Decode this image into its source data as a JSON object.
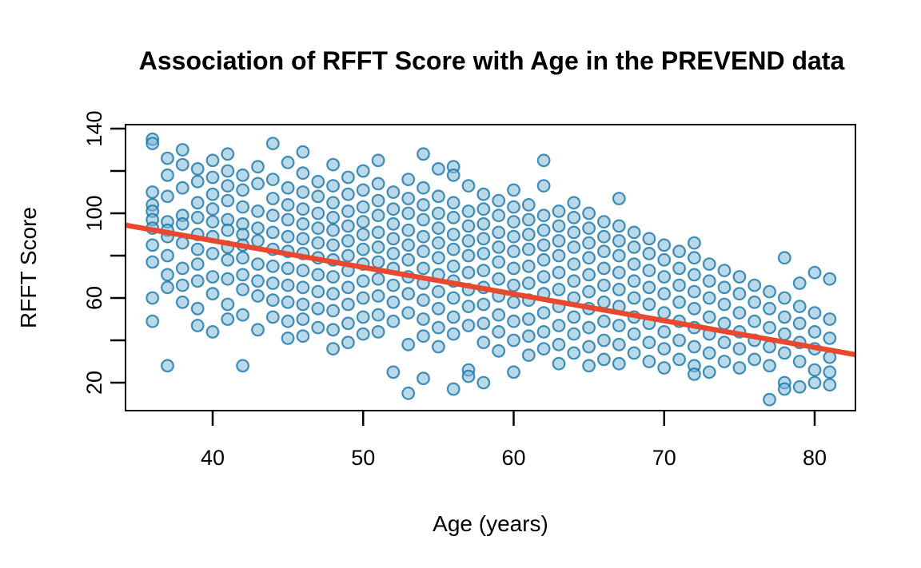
{
  "chart_data": {
    "type": "scatter",
    "title": "Association of RFFT Score with Age in the PREVEND data",
    "xlabel": "Age (years)",
    "ylabel": "RFFT Score",
    "xlim": [
      34.21,
      82.71
    ],
    "ylim": [
      6.8,
      141.9
    ],
    "x_ticks": [
      40,
      50,
      60,
      70,
      80
    ],
    "y_ticks": [
      20,
      40,
      60,
      80,
      100,
      120,
      140
    ],
    "y_ticks_labeled": [
      20,
      60,
      100,
      140
    ],
    "grid": false,
    "legend": "none",
    "background_color": "#ffffff",
    "frame_color": "#000000",
    "regression": {
      "label": "least-squares line",
      "intercept": 137.55,
      "slope": -1.261,
      "color": "#e8492e",
      "width": 6.5
    },
    "point_style": {
      "fill": "#80b8d5",
      "fill_opacity": 0.55,
      "stroke": "#1774a6",
      "stroke_opacity": 0.8,
      "stroke_width": 2.2,
      "radius": 7.3
    },
    "points_by_age": {
      "36": [
        135,
        133,
        110,
        104,
        101,
        97,
        93,
        85,
        77,
        60,
        49
      ],
      "37": [
        126,
        118,
        108,
        96,
        92,
        89,
        80,
        71,
        65,
        28
      ],
      "38": [
        130,
        123,
        112,
        99,
        95,
        86,
        74,
        66,
        58
      ],
      "39": [
        121,
        115,
        105,
        98,
        90,
        83,
        76,
        68,
        55,
        47
      ],
      "40": [
        125,
        117,
        109,
        102,
        96,
        89,
        81,
        70,
        62,
        44
      ],
      "41": [
        128,
        120,
        113,
        106,
        97,
        92,
        84,
        78,
        69,
        57,
        50
      ],
      "42": [
        118,
        111,
        103,
        95,
        90,
        85,
        79,
        71,
        64,
        52,
        28
      ],
      "43": [
        122,
        114,
        101,
        93,
        87,
        76,
        68,
        61,
        45
      ],
      "44": [
        133,
        116,
        107,
        99,
        91,
        83,
        75,
        67,
        59,
        51
      ],
      "45": [
        124,
        112,
        104,
        97,
        89,
        82,
        74,
        66,
        58,
        49,
        41
      ],
      "46": [
        129,
        119,
        110,
        102,
        95,
        88,
        81,
        73,
        65,
        57,
        50,
        42
      ],
      "47": [
        115,
        108,
        100,
        93,
        86,
        79,
        71,
        63,
        55,
        46
      ],
      "48": [
        123,
        113,
        105,
        98,
        92,
        85,
        78,
        70,
        62,
        54,
        45,
        36
      ],
      "49": [
        117,
        109,
        101,
        94,
        87,
        80,
        73,
        65,
        57,
        48,
        39
      ],
      "50": [
        120,
        111,
        103,
        96,
        90,
        83,
        76,
        68,
        60,
        51,
        43
      ],
      "51": [
        125,
        114,
        106,
        99,
        91,
        84,
        77,
        69,
        61,
        52,
        44
      ],
      "52": [
        110,
        102,
        95,
        88,
        81,
        74,
        66,
        58,
        49,
        25
      ],
      "53": [
        116,
        107,
        100,
        92,
        85,
        78,
        70,
        62,
        53,
        38,
        15
      ],
      "54": [
        128,
        112,
        104,
        97,
        89,
        82,
        74,
        67,
        59,
        50,
        42,
        22
      ],
      "55": [
        121,
        108,
        100,
        93,
        86,
        79,
        71,
        63,
        55,
        46,
        37
      ],
      "56": [
        122,
        118,
        105,
        98,
        90,
        83,
        75,
        68,
        60,
        51,
        43,
        17
      ],
      "57": [
        113,
        101,
        94,
        87,
        80,
        72,
        64,
        56,
        47,
        26,
        23
      ],
      "58": [
        109,
        102,
        95,
        88,
        81,
        73,
        65,
        57,
        48,
        39,
        20
      ],
      "59": [
        106,
        99,
        91,
        84,
        77,
        69,
        61,
        52,
        44,
        35
      ],
      "60": [
        111,
        103,
        96,
        89,
        82,
        74,
        66,
        58,
        49,
        40,
        25
      ],
      "61": [
        104,
        97,
        90,
        83,
        75,
        67,
        59,
        50,
        42,
        33
      ],
      "62": [
        125,
        113,
        99,
        92,
        85,
        78,
        70,
        62,
        53,
        44,
        36
      ],
      "63": [
        101,
        94,
        87,
        80,
        72,
        64,
        56,
        47,
        38,
        29
      ],
      "64": [
        105,
        98,
        91,
        84,
        76,
        68,
        60,
        51,
        43,
        34
      ],
      "65": [
        100,
        93,
        86,
        79,
        71,
        63,
        55,
        46,
        37,
        28
      ],
      "66": [
        96,
        89,
        82,
        74,
        66,
        58,
        49,
        40,
        31
      ],
      "67": [
        107,
        94,
        87,
        80,
        72,
        64,
        56,
        47,
        38,
        29
      ],
      "68": [
        91,
        84,
        76,
        68,
        60,
        51,
        43,
        34
      ],
      "69": [
        88,
        81,
        73,
        65,
        57,
        48,
        39,
        30
      ],
      "70": [
        85,
        78,
        70,
        62,
        53,
        44,
        36,
        27
      ],
      "71": [
        82,
        74,
        66,
        58,
        49,
        40,
        31
      ],
      "72": [
        86,
        79,
        71,
        63,
        55,
        46,
        37,
        28,
        24
      ],
      "73": [
        76,
        68,
        60,
        51,
        43,
        34,
        25
      ],
      "74": [
        73,
        65,
        57,
        48,
        39,
        30
      ],
      "75": [
        70,
        62,
        53,
        44,
        36,
        27
      ],
      "76": [
        66,
        58,
        49,
        40,
        31
      ],
      "77": [
        63,
        55,
        46,
        37,
        28,
        12
      ],
      "78": [
        79,
        60,
        51,
        43,
        34,
        20,
        17
      ],
      "79": [
        67,
        56,
        48,
        39,
        30,
        18
      ],
      "80": [
        72,
        53,
        44,
        36,
        26,
        20
      ],
      "81": [
        69,
        50,
        41,
        32,
        25,
        19
      ]
    }
  }
}
